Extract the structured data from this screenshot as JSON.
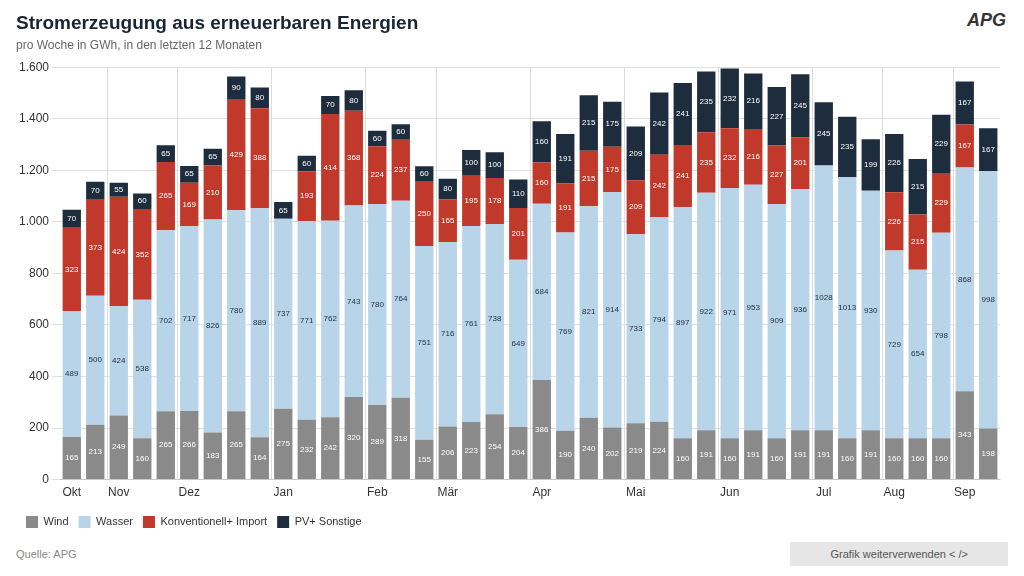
{
  "chart_data": {
    "type": "bar",
    "title": "Stromerzeugung aus erneuerbaren Energien",
    "subtitle": "pro Woche in GWh, in den letzten 12 Monaten",
    "annotations": [
      "APG",
      "Quelle: APG",
      "Grafik weiterverwenden < />"
    ],
    "categories": [
      "Okt",
      null,
      "Nov",
      null,
      null,
      "Dez",
      null,
      null,
      null,
      "Jan",
      null,
      null,
      null,
      "Feb",
      null,
      null,
      "Mär",
      null,
      null,
      null,
      "Apr",
      null,
      null,
      null,
      "Mai",
      null,
      null,
      null,
      "Jun",
      null,
      null,
      null,
      "Jul",
      null,
      null,
      "Aug",
      null,
      null,
      "Sep",
      null
    ],
    "series": [
      {
        "name": "Wind",
        "color": "#8a8a8a",
        "values": [
          165,
          213,
          249,
          160,
          265,
          266,
          183,
          265,
          164,
          275,
          232,
          242,
          320,
          289,
          318,
          155,
          206,
          223,
          254,
          204,
          386,
          190,
          240,
          202,
          219,
          224,
          160,
          191,
          160,
          191,
          160,
          191,
          191,
          160,
          191,
          160,
          160,
          160,
          343,
          198
        ]
      },
      {
        "name": "Wasser",
        "color": "#b8d4e8",
        "values": [
          489,
          500,
          424,
          538,
          702,
          717,
          826,
          780,
          889,
          737,
          771,
          762,
          743,
          780,
          764,
          751,
          716,
          761,
          738,
          649,
          684,
          769,
          821,
          914,
          733,
          794,
          897,
          922,
          971,
          953,
          909,
          936,
          1028,
          1013,
          930,
          729,
          654,
          798,
          868,
          998
        ]
      },
      {
        "name": "Konventionell+ Import",
        "color": "#c0392b",
        "values": [
          323,
          373,
          424,
          352,
          265,
          169,
          210,
          429,
          388,
          0,
          193,
          414,
          368,
          224,
          237,
          250,
          165,
          195,
          178,
          201,
          160,
          191,
          215,
          175,
          209,
          242,
          241,
          235,
          232,
          216,
          227,
          201,
          0,
          0,
          0,
          226,
          215,
          229,
          167,
          0
        ],
        "value_labels": [
          "323",
          "373",
          "424",
          "352",
          "265",
          "169",
          "210",
          "429",
          "388",
          null,
          "193",
          "414",
          "368",
          "224",
          "237",
          "250",
          "165",
          "195",
          "178",
          "201",
          "160",
          "191",
          "215",
          "175",
          "209",
          "242",
          "241",
          "235",
          "232",
          "216",
          "227",
          "201",
          null,
          null,
          null,
          "226",
          "215",
          "229",
          "167",
          null
        ]
      },
      {
        "name": "PV+ Sonstige",
        "color": "#1e2d3d",
        "values": [
          70,
          70,
          55,
          60,
          65,
          65,
          65,
          90,
          80,
          65,
          60,
          70,
          80,
          60,
          60,
          60,
          80,
          100,
          100,
          110,
          160,
          191,
          215,
          175,
          209,
          242,
          241,
          235,
          232,
          216,
          227,
          245,
          245,
          235,
          199,
          226,
          215,
          229,
          167,
          167
        ]
      }
    ],
    "stacked": true,
    "data_labels": true,
    "ylim": [
      0,
      1600
    ],
    "yticks": [
      0,
      200,
      400,
      600,
      800,
      {
        "value": 1000,
        "label": "1.000"
      },
      {
        "value": 1200,
        "label": "1.200"
      },
      {
        "value": 1400,
        "label": "1.400"
      },
      {
        "value": 1600,
        "label": "1.600"
      }
    ],
    "grid": true,
    "legend": "bottom"
  }
}
